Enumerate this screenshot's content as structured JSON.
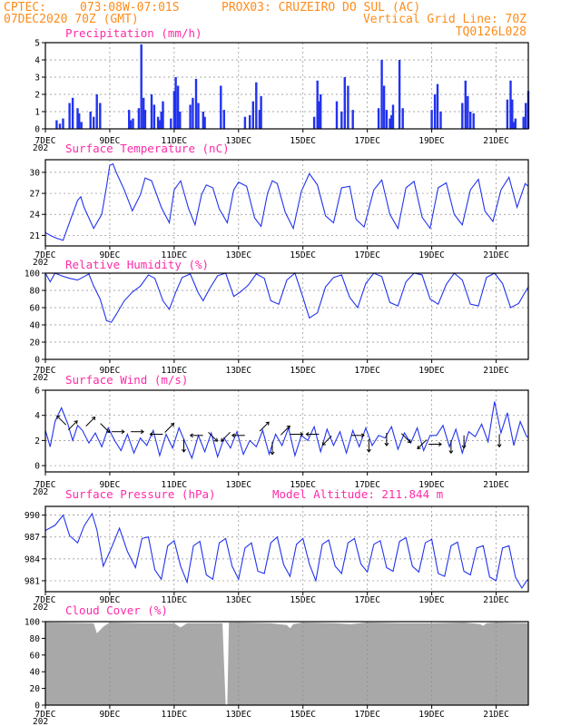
{
  "header": {
    "source": "CPTEC:",
    "coords": "073:08W-07:01S",
    "station": "PROX03: CRUZEIRO DO SUL (AC)",
    "run": "07DEC2020 70Z (GMT)",
    "grid_note": "Vertical Grid Line: 70Z",
    "model": "TQ0126L028"
  },
  "colors": {
    "header": "#ff8c1a",
    "title": "#ff2aa8",
    "series": "#2233ee",
    "cloud": "#a8a8a8",
    "arrow": "#000000"
  },
  "x_axis": {
    "ticks": [
      "7DEC",
      "9DEC",
      "11DEC",
      "13DEC",
      "15DEC",
      "17DEC",
      "19DEC",
      "21DEC"
    ],
    "tick_days": [
      0,
      2,
      4,
      6,
      8,
      10,
      12,
      14
    ],
    "range_days": [
      0,
      15
    ],
    "year_fragment": "202"
  },
  "chart_data": [
    {
      "type": "bar",
      "title": "Precipitation (mm/h)",
      "ylim": [
        0,
        5
      ],
      "yticks": [
        "0",
        "1",
        "2",
        "3",
        "4",
        "5"
      ],
      "ytick_values": [
        0,
        1,
        2,
        3,
        4,
        5
      ],
      "x_days": [
        0.35,
        0.45,
        0.55,
        0.75,
        0.85,
        1.0,
        1.05,
        1.12,
        1.4,
        1.5,
        1.6,
        1.7,
        2.6,
        2.65,
        2.72,
        2.9,
        2.98,
        3.05,
        3.1,
        3.3,
        3.38,
        3.5,
        3.55,
        3.6,
        3.65,
        3.9,
        4.0,
        4.05,
        4.12,
        4.18,
        4.5,
        4.58,
        4.68,
        4.75,
        4.9,
        4.95,
        5.45,
        5.55,
        6.2,
        6.35,
        6.45,
        6.55,
        6.65,
        6.7,
        8.35,
        8.45,
        8.5,
        8.55,
        9.05,
        9.2,
        9.3,
        9.4,
        9.55,
        10.35,
        10.45,
        10.52,
        10.6,
        10.7,
        10.75,
        10.8,
        11.0,
        11.1,
        12.0,
        12.1,
        12.18,
        12.28,
        12.95,
        13.05,
        13.12,
        13.2,
        13.3,
        14.35,
        14.45,
        14.5,
        14.55,
        14.6,
        14.85,
        14.92,
        15.0
      ],
      "values": [
        0.5,
        0.3,
        0.6,
        1.5,
        1.8,
        1.2,
        0.9,
        0.4,
        1.0,
        0.7,
        2.0,
        1.5,
        1.1,
        0.5,
        0.6,
        1.2,
        4.9,
        1.8,
        1.1,
        2.0,
        1.4,
        0.7,
        0.5,
        1.0,
        1.6,
        0.6,
        2.2,
        3.0,
        2.5,
        1.0,
        1.4,
        1.8,
        2.9,
        1.5,
        1.0,
        0.7,
        2.5,
        1.1,
        0.7,
        0.8,
        1.6,
        2.7,
        1.1,
        1.9,
        0.7,
        2.8,
        1.6,
        2.0,
        1.6,
        1.0,
        3.0,
        2.5,
        1.1,
        1.2,
        4.0,
        2.5,
        1.1,
        0.6,
        0.8,
        1.4,
        4.0,
        1.2,
        1.1,
        2.0,
        2.6,
        1.0,
        1.5,
        2.8,
        1.9,
        1.0,
        0.9,
        1.7,
        2.8,
        1.7,
        0.4,
        0.6,
        0.7,
        1.5,
        2.2
      ]
    },
    {
      "type": "line",
      "title": "Surface Temperature (nC)",
      "ylim": [
        19.5,
        31.8
      ],
      "yticks": [
        "21",
        "24",
        "27",
        "30"
      ],
      "ytick_values": [
        21,
        24,
        27,
        30
      ],
      "x": [
        0,
        0.2,
        0.35,
        0.55,
        0.8,
        1.0,
        1.1,
        1.2,
        1.5,
        1.75,
        1.9,
        2.0,
        2.1,
        2.2,
        2.45,
        2.7,
        2.95,
        3.1,
        3.3,
        3.6,
        3.85,
        4.0,
        4.2,
        4.45,
        4.65,
        4.85,
        5.0,
        5.2,
        5.4,
        5.65,
        5.85,
        6.0,
        6.25,
        6.5,
        6.7,
        6.9,
        7.05,
        7.2,
        7.45,
        7.7,
        7.95,
        8.2,
        8.45,
        8.7,
        8.95,
        9.2,
        9.45,
        9.65,
        9.9,
        10.2,
        10.45,
        10.7,
        10.95,
        11.2,
        11.45,
        11.7,
        11.95,
        12.2,
        12.45,
        12.7,
        12.95,
        13.2,
        13.45,
        13.65,
        13.9,
        14.15,
        14.4,
        14.65,
        14.9,
        15.0
      ],
      "values": [
        21.4,
        20.9,
        20.6,
        20.3,
        23.5,
        26.0,
        26.5,
        25.0,
        22.0,
        24.0,
        28.0,
        31.0,
        31.2,
        30.0,
        27.5,
        24.5,
        26.8,
        29.2,
        28.8,
        25.0,
        22.8,
        27.5,
        28.8,
        24.8,
        22.5,
        26.8,
        28.2,
        27.8,
        24.8,
        22.8,
        27.5,
        28.6,
        28.0,
        23.5,
        22.3,
        27.0,
        28.8,
        28.4,
        24.3,
        22.0,
        27.3,
        29.8,
        28.2,
        23.8,
        22.8,
        27.8,
        28.0,
        23.3,
        22.2,
        27.5,
        28.9,
        24.0,
        22.0,
        27.8,
        28.7,
        23.6,
        22.0,
        27.8,
        28.5,
        24.0,
        22.5,
        27.5,
        29.0,
        24.5,
        23.0,
        27.5,
        29.3,
        25.0,
        28.4,
        28.0
      ]
    },
    {
      "type": "line",
      "title": "Relative Humidity (%)",
      "ylim": [
        0,
        100
      ],
      "yticks": [
        "0",
        "20",
        "40",
        "60",
        "80",
        "100"
      ],
      "ytick_values": [
        0,
        20,
        40,
        60,
        80,
        100
      ],
      "x": [
        0,
        0.15,
        0.3,
        0.5,
        0.75,
        1.0,
        1.2,
        1.35,
        1.5,
        1.7,
        1.9,
        2.05,
        2.2,
        2.45,
        2.7,
        2.95,
        3.2,
        3.4,
        3.65,
        3.85,
        4.05,
        4.25,
        4.5,
        4.75,
        4.9,
        5.1,
        5.35,
        5.6,
        5.85,
        6.05,
        6.3,
        6.55,
        6.8,
        7.0,
        7.25,
        7.5,
        7.75,
        8.0,
        8.2,
        8.45,
        8.7,
        8.95,
        9.2,
        9.45,
        9.7,
        9.95,
        10.2,
        10.45,
        10.7,
        10.95,
        11.2,
        11.45,
        11.7,
        11.95,
        12.2,
        12.45,
        12.7,
        12.95,
        13.2,
        13.45,
        13.7,
        13.95,
        14.2,
        14.45,
        14.7,
        14.9,
        15.0
      ],
      "values": [
        100,
        90,
        100,
        97,
        94,
        92,
        96,
        99,
        85,
        70,
        45,
        43,
        52,
        68,
        78,
        85,
        98,
        94,
        68,
        58,
        78,
        95,
        99,
        77,
        68,
        82,
        97,
        100,
        73,
        78,
        86,
        99,
        94,
        68,
        64,
        92,
        100,
        72,
        48,
        54,
        84,
        95,
        98,
        72,
        60,
        88,
        100,
        96,
        66,
        62,
        90,
        100,
        98,
        70,
        64,
        87,
        100,
        92,
        64,
        62,
        95,
        100,
        88,
        60,
        65,
        78,
        84
      ]
    },
    {
      "type": "line",
      "title": "Surface Wind (m/s)",
      "ylim": [
        -0.5,
        6
      ],
      "yticks": [
        "0",
        "2",
        "4",
        "6"
      ],
      "ytick_values": [
        0,
        2,
        4,
        6
      ],
      "x": [
        0,
        0.15,
        0.3,
        0.5,
        0.7,
        0.85,
        1.0,
        1.15,
        1.35,
        1.55,
        1.75,
        1.95,
        2.15,
        2.35,
        2.55,
        2.75,
        2.95,
        3.15,
        3.35,
        3.55,
        3.75,
        3.95,
        4.15,
        4.35,
        4.55,
        4.75,
        4.95,
        5.15,
        5.35,
        5.55,
        5.75,
        5.95,
        6.15,
        6.35,
        6.55,
        6.75,
        6.95,
        7.15,
        7.35,
        7.55,
        7.75,
        7.95,
        8.15,
        8.35,
        8.55,
        8.75,
        8.95,
        9.15,
        9.35,
        9.55,
        9.75,
        9.95,
        10.15,
        10.35,
        10.55,
        10.75,
        10.95,
        11.15,
        11.35,
        11.55,
        11.75,
        11.95,
        12.15,
        12.35,
        12.55,
        12.75,
        12.95,
        13.15,
        13.35,
        13.55,
        13.75,
        13.95,
        14.15,
        14.35,
        14.55,
        14.75,
        14.95,
        15.0
      ],
      "values": [
        2.8,
        1.5,
        3.5,
        4.6,
        3.3,
        2.0,
        3.2,
        2.8,
        1.8,
        2.6,
        1.5,
        3.0,
        2.0,
        1.2,
        2.5,
        1.0,
        2.2,
        1.6,
        2.8,
        0.8,
        2.5,
        1.4,
        3.0,
        1.8,
        0.6,
        2.4,
        1.1,
        2.6,
        0.7,
        2.2,
        1.4,
        2.7,
        0.9,
        2.0,
        1.5,
        2.8,
        0.9,
        2.5,
        1.6,
        3.0,
        0.8,
        2.4,
        2.0,
        3.1,
        1.1,
        2.9,
        1.6,
        2.7,
        1.0,
        2.8,
        1.5,
        3.0,
        1.6,
        2.4,
        2.2,
        3.1,
        1.3,
        2.6,
        1.8,
        3.0,
        1.2,
        2.4,
        2.4,
        3.2,
        1.5,
        2.9,
        1.0,
        2.7,
        2.3,
        3.3,
        1.9,
        5.1,
        2.6,
        4.2,
        1.6,
        3.5,
        2.3,
        2.3
      ],
      "vectors": [
        {
          "x": 0.5,
          "v": 3.6,
          "dx": -1,
          "dy": 1
        },
        {
          "x": 0.85,
          "v": 3.2,
          "dx": 1,
          "dy": 1
        },
        {
          "x": 1.4,
          "v": 3.5,
          "dx": 1,
          "dy": 1
        },
        {
          "x": 1.85,
          "v": 3.0,
          "dx": 1,
          "dy": -1
        },
        {
          "x": 2.25,
          "v": 2.7,
          "dx": 1,
          "dy": 0
        },
        {
          "x": 2.85,
          "v": 2.7,
          "dx": 1,
          "dy": 0
        },
        {
          "x": 3.45,
          "v": 2.5,
          "dx": -1,
          "dy": 0
        },
        {
          "x": 3.85,
          "v": 3.0,
          "dx": 1,
          "dy": 1
        },
        {
          "x": 4.3,
          "v": 1.6,
          "dx": 0,
          "dy": -1
        },
        {
          "x": 4.7,
          "v": 2.4,
          "dx": -1,
          "dy": 0
        },
        {
          "x": 5.2,
          "v": 2.3,
          "dx": 1,
          "dy": -1
        },
        {
          "x": 5.6,
          "v": 2.3,
          "dx": -1,
          "dy": -1
        },
        {
          "x": 6.0,
          "v": 2.4,
          "dx": -1,
          "dy": 0
        },
        {
          "x": 6.8,
          "v": 3.1,
          "dx": 1,
          "dy": 1
        },
        {
          "x": 7.05,
          "v": 1.4,
          "dx": 0,
          "dy": -1
        },
        {
          "x": 7.45,
          "v": 2.8,
          "dx": 1,
          "dy": 1
        },
        {
          "x": 7.8,
          "v": 2.5,
          "dx": 1,
          "dy": 0
        },
        {
          "x": 8.3,
          "v": 2.5,
          "dx": -1,
          "dy": 0
        },
        {
          "x": 8.75,
          "v": 2.0,
          "dx": -1,
          "dy": -1
        },
        {
          "x": 9.7,
          "v": 2.4,
          "dx": 1,
          "dy": 0
        },
        {
          "x": 10.05,
          "v": 1.6,
          "dx": 0,
          "dy": -1
        },
        {
          "x": 10.6,
          "v": 2.1,
          "dx": 0,
          "dy": -1
        },
        {
          "x": 11.2,
          "v": 2.2,
          "dx": 1,
          "dy": -1
        },
        {
          "x": 11.7,
          "v": 1.7,
          "dx": -1,
          "dy": -1
        },
        {
          "x": 12.1,
          "v": 1.7,
          "dx": 1,
          "dy": 0
        },
        {
          "x": 12.6,
          "v": 1.5,
          "dx": 0,
          "dy": -1
        },
        {
          "x": 13.0,
          "v": 1.9,
          "dx": 0,
          "dy": -1
        },
        {
          "x": 14.1,
          "v": 2.0,
          "dx": 0,
          "dy": -1
        }
      ]
    },
    {
      "type": "line",
      "title": "Surface Pressure (hPa)",
      "subtitle": "Model Altitude: 211.844 m",
      "ylim": [
        979.5,
        991.2
      ],
      "yticks": [
        "981",
        "984",
        "987",
        "990"
      ],
      "ytick_values": [
        981,
        984,
        987,
        990
      ],
      "x": [
        0,
        0.3,
        0.55,
        0.75,
        1.0,
        1.2,
        1.45,
        1.6,
        1.8,
        2.05,
        2.3,
        2.55,
        2.8,
        3.0,
        3.2,
        3.4,
        3.6,
        3.8,
        4.0,
        4.2,
        4.4,
        4.6,
        4.8,
        5.0,
        5.2,
        5.4,
        5.6,
        5.8,
        6.0,
        6.2,
        6.4,
        6.6,
        6.8,
        7.0,
        7.2,
        7.4,
        7.6,
        7.8,
        8.0,
        8.2,
        8.4,
        8.6,
        8.8,
        9.0,
        9.2,
        9.4,
        9.6,
        9.8,
        10.0,
        10.2,
        10.4,
        10.6,
        10.8,
        11.0,
        11.2,
        11.4,
        11.6,
        11.8,
        12.0,
        12.2,
        12.4,
        12.6,
        12.8,
        13.0,
        13.2,
        13.4,
        13.6,
        13.8,
        14.0,
        14.2,
        14.4,
        14.6,
        14.8,
        14.95,
        15.0
      ],
      "values": [
        987.9,
        988.6,
        990.0,
        987.2,
        986.2,
        988.5,
        990.2,
        988.0,
        983.0,
        985.5,
        988.2,
        985.0,
        982.8,
        986.8,
        987.0,
        982.5,
        981.2,
        985.8,
        986.5,
        983.0,
        980.8,
        985.8,
        986.4,
        981.8,
        981.2,
        986.2,
        986.8,
        983.0,
        981.2,
        985.5,
        986.2,
        982.3,
        982.0,
        986.2,
        987.0,
        983.2,
        981.6,
        986.0,
        986.8,
        983.3,
        981.0,
        986.0,
        986.6,
        983.0,
        982.0,
        986.2,
        986.8,
        983.3,
        982.2,
        986.0,
        986.5,
        982.8,
        982.3,
        986.4,
        986.9,
        983.0,
        982.2,
        986.2,
        986.7,
        982.0,
        981.6,
        985.8,
        986.3,
        982.3,
        981.8,
        985.5,
        985.8,
        981.5,
        981.0,
        985.5,
        985.8,
        981.5,
        980.0,
        981.0,
        981.2
      ]
    },
    {
      "type": "area",
      "title": "Cloud Cover (%)",
      "ylim": [
        0,
        100
      ],
      "yticks": [
        "0",
        "20",
        "40",
        "60",
        "80",
        "100"
      ],
      "ytick_values": [
        0,
        20,
        40,
        60,
        80,
        100
      ],
      "x": [
        0,
        1.5,
        1.6,
        1.7,
        1.8,
        2.0,
        3.0,
        4.0,
        4.2,
        4.4,
        5.5,
        5.6,
        5.65,
        5.7,
        6.0,
        7.0,
        7.5,
        7.6,
        7.7,
        8.0,
        9.0,
        9.5,
        10.0,
        11.0,
        12.0,
        13.0,
        13.5,
        13.6,
        13.7,
        14.0,
        15.0
      ],
      "values": [
        99,
        98,
        86,
        90,
        94,
        99,
        98,
        98,
        93,
        98,
        98,
        0,
        0,
        99,
        99,
        98,
        96,
        92,
        97,
        99,
        98,
        97,
        99,
        98,
        98,
        99,
        97,
        95,
        98,
        99,
        98
      ]
    }
  ]
}
